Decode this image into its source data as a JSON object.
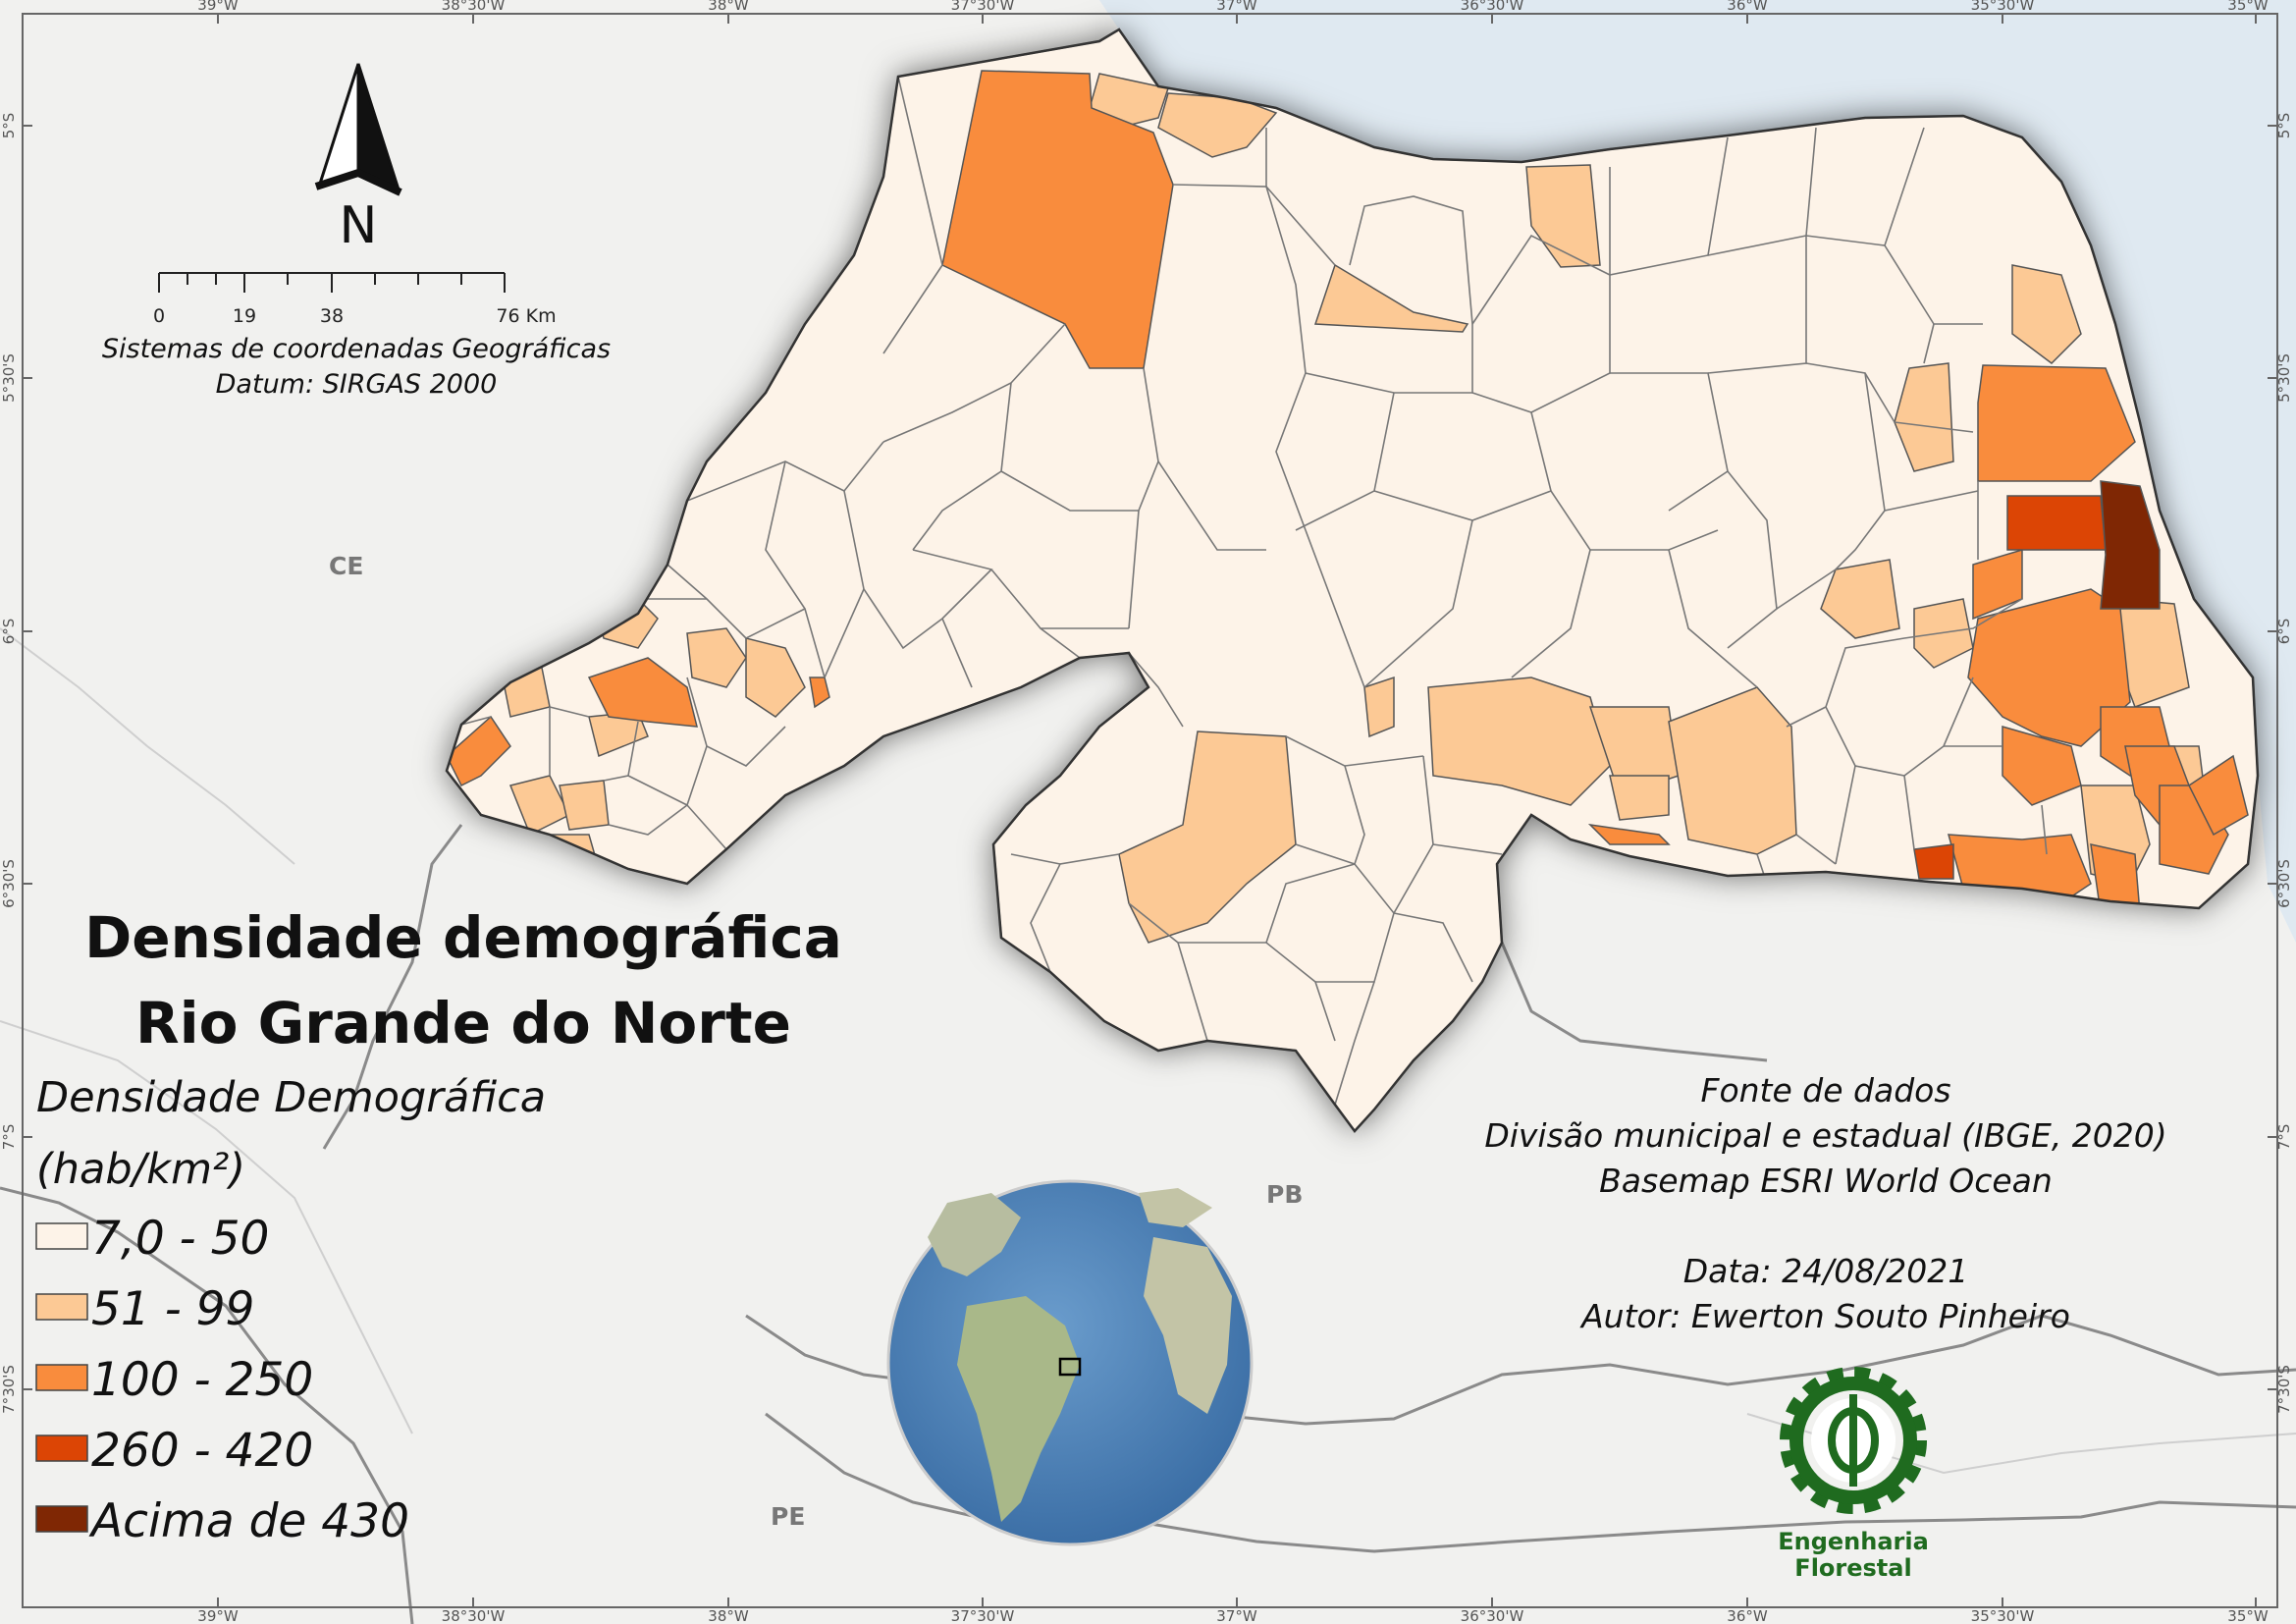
{
  "title": {
    "line1": "Densidade demográfica",
    "line2": "Rio Grande do Norte"
  },
  "legend": {
    "title_line1": "Densidade Demográfica",
    "title_line2": "(hab/km²)",
    "classes": [
      {
        "label": "7,0 - 50",
        "color": "#fdf3e8"
      },
      {
        "label": "51 - 99",
        "color": "#fcc995"
      },
      {
        "label": "100 - 250",
        "color": "#f98c3d"
      },
      {
        "label": "260 - 420",
        "color": "#dc4505"
      },
      {
        "label": "Acima de 430",
        "color": "#7f2704"
      }
    ]
  },
  "crs": {
    "line1": "Sistemas de coordenadas Geográficas",
    "line2": "Datum: SIRGAS 2000"
  },
  "scale_bar": {
    "labels": [
      "0",
      "19",
      "38",
      "76 Km"
    ]
  },
  "north_arrow": {
    "label": "N"
  },
  "credits": {
    "source_title": "Fonte de dados",
    "source_line1": "Divisão municipal e estadual (IBGE, 2020)",
    "source_line2": "Basemap ESRI World Ocean",
    "date": "Data: 24/08/2021",
    "author": "Autor: Ewerton Souto Pinheiro"
  },
  "logo": {
    "line1": "Engenharia",
    "line2": "Florestal",
    "icon": "phi-gear-icon",
    "color": "#1f6b1f"
  },
  "state_labels": {
    "ce": "CE",
    "pb": "PB",
    "pe": "PE"
  },
  "graticule": {
    "lon": [
      "39°W",
      "38°30'W",
      "38°W",
      "37°30'W",
      "37°W",
      "36°30'W",
      "36°W",
      "35°30'W",
      "35°W"
    ],
    "lat": [
      "5°S",
      "5°30'S",
      "6°S",
      "6°30'S",
      "7°S",
      "7°30'S"
    ]
  },
  "colors": {
    "ocean": "#dfe9f1",
    "land": "#f1f1ef",
    "boundary": "#555555"
  }
}
